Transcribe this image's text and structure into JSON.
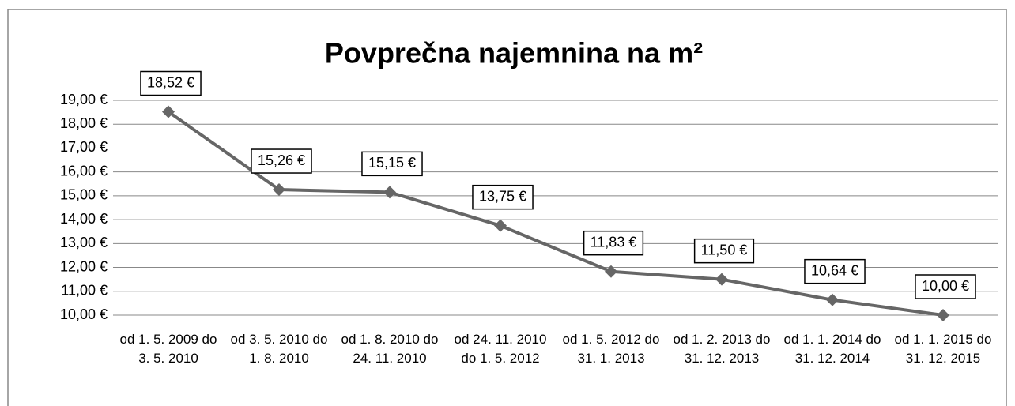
{
  "chart_data": {
    "type": "line",
    "title": "Povprečna najemnina na m²",
    "categories": [
      "od 1. 5. 2009 do 3. 5. 2010",
      "od 3. 5. 2010 do 1. 8. 2010",
      "od 1. 8. 2010 do 24. 11. 2010",
      "od 24. 11. 2010 do 1. 5. 2012",
      "od 1. 5. 2012 do 31. 1. 2013",
      "od 1. 2. 2013 do 31. 12. 2013",
      "od 1. 1. 2014 do 31. 12. 2014",
      "od 1. 1. 2015 do 31. 12. 2015"
    ],
    "series": [
      {
        "name": "Povprečna najemnina",
        "color": "#666666",
        "values": [
          18.52,
          15.26,
          15.15,
          13.75,
          11.83,
          11.5,
          10.64,
          10.0
        ],
        "value_labels": [
          "18,52 €",
          "15,26 €",
          "15,15 €",
          "13,75 €",
          "11,83 €",
          "11,50 €",
          "10,64 €",
          "10,00 €"
        ]
      }
    ],
    "ylim": [
      10,
      19
    ],
    "yticks": [
      {
        "value": 10,
        "label": "10,00 €"
      },
      {
        "value": 11,
        "label": "11,00 €"
      },
      {
        "value": 12,
        "label": "12,00 €"
      },
      {
        "value": 13,
        "label": "13,00 €"
      },
      {
        "value": 14,
        "label": "14,00 €"
      },
      {
        "value": 15,
        "label": "15,00 €"
      },
      {
        "value": 16,
        "label": "16,00 €"
      },
      {
        "value": 17,
        "label": "17,00 €"
      },
      {
        "value": 18,
        "label": "18,00 €"
      },
      {
        "value": 19,
        "label": "19,00 €"
      }
    ],
    "grid": true
  }
}
